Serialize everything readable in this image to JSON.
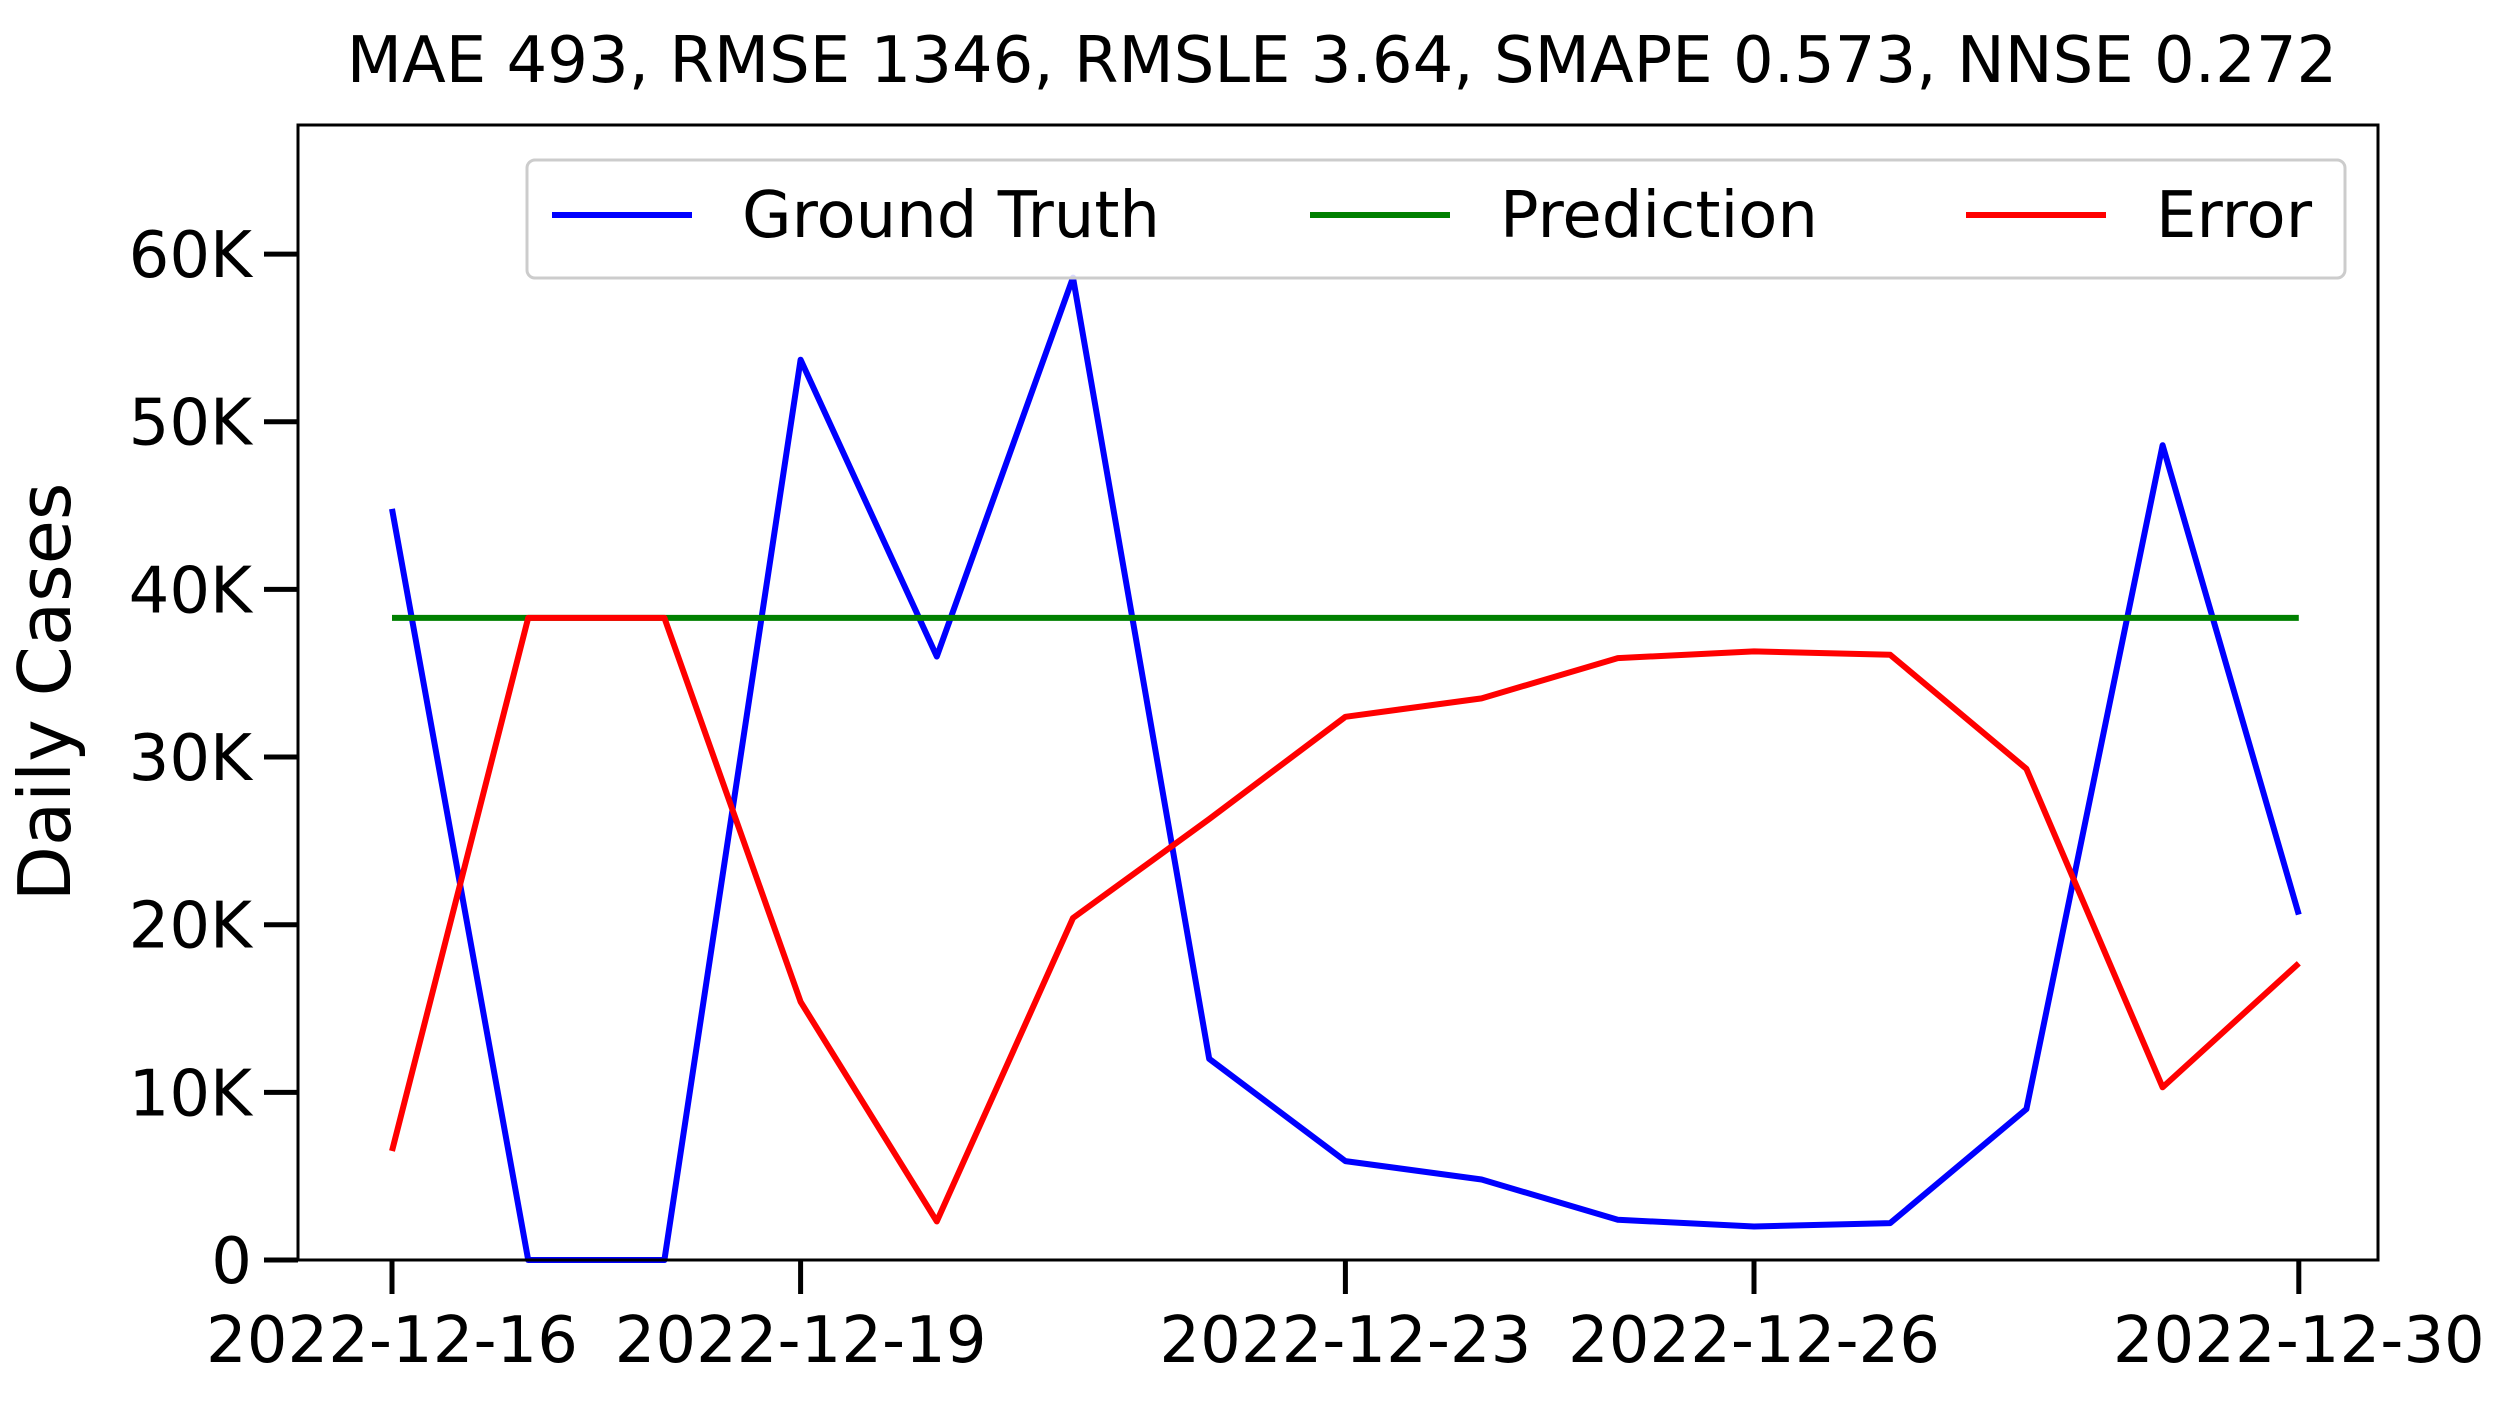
{
  "chart_data": {
    "type": "line",
    "title": "MAE 493, RMSE 1346, RMSLE 3.64, SMAPE 0.573, NNSE 0.272",
    "xlabel": "",
    "ylabel": "Daily Cases",
    "x": [
      "2022-12-16",
      "2022-12-17",
      "2022-12-18",
      "2022-12-19",
      "2022-12-20",
      "2022-12-21",
      "2022-12-22",
      "2022-12-23",
      "2022-12-24",
      "2022-12-25",
      "2022-12-26",
      "2022-12-27",
      "2022-12-28",
      "2022-12-29",
      "2022-12-30"
    ],
    "ylim": [
      0,
      67700
    ],
    "yticks": [
      {
        "value": 0,
        "label": "0"
      },
      {
        "value": 10000,
        "label": "10K"
      },
      {
        "value": 20000,
        "label": "20K"
      },
      {
        "value": 30000,
        "label": "30K"
      },
      {
        "value": 40000,
        "label": "40K"
      },
      {
        "value": 50000,
        "label": "50K"
      },
      {
        "value": 60000,
        "label": "60K"
      }
    ],
    "xticks": [
      "2022-12-16",
      "2022-12-19",
      "2022-12-23",
      "2022-12-26",
      "2022-12-30"
    ],
    "series": [
      {
        "name": "Ground Truth",
        "color": "#0000ff",
        "values": [
          44800,
          0,
          0,
          53700,
          36000,
          58600,
          12000,
          5900,
          4800,
          2400,
          2000,
          2200,
          9000,
          48600,
          20600
        ]
      },
      {
        "name": "Prediction",
        "color": "#008000",
        "values": [
          38300,
          38300,
          38300,
          38300,
          38300,
          38300,
          38300,
          38300,
          38300,
          38300,
          38300,
          38300,
          38300,
          38300,
          38300
        ]
      },
      {
        "name": "Error",
        "color": "#ff0000",
        "values": [
          6500,
          38300,
          38300,
          15400,
          2300,
          20400,
          26300,
          32400,
          33500,
          35900,
          36300,
          36100,
          29300,
          10300,
          17700
        ]
      }
    ],
    "legend_position": "top-right",
    "grid": false
  }
}
